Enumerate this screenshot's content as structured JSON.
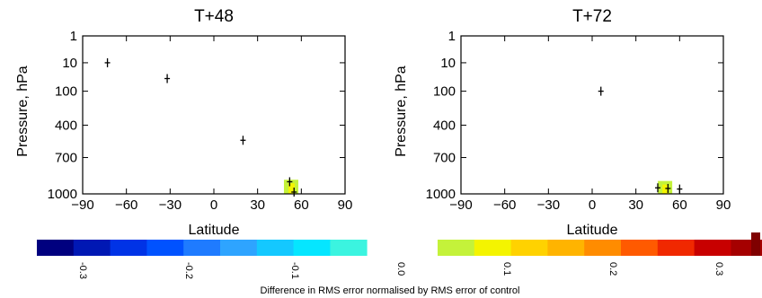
{
  "colors": {
    "negative": [
      "#00007f",
      "#0018b4",
      "#0033e6",
      "#0052ff",
      "#1f7bff",
      "#2ea4ff",
      "#14c8ff",
      "#05e6ff",
      "#3bf4e0"
    ],
    "positive": [
      "#c4f23a",
      "#f4f400",
      "#ffd200",
      "#ffb400",
      "#ff8c00",
      "#ff5a00",
      "#f02800",
      "#c80000",
      "#a50000",
      "#7f0000"
    ],
    "text": "#000000"
  },
  "chart_data": [
    {
      "type": "heatmap",
      "title": "T+48",
      "xlabel": "Latitude",
      "ylabel": "Pressure, hPa",
      "xlim": [
        -90,
        90
      ],
      "xticks": [
        -90,
        -60,
        -30,
        0,
        30,
        60,
        90
      ],
      "ylim": [
        1,
        1000
      ],
      "yscale": "nonlinear",
      "yticks": [
        1,
        10,
        100,
        400,
        700,
        1000
      ],
      "filled_regions": [
        {
          "lat": 53,
          "pressure": 950,
          "value": 0.05
        }
      ],
      "cross_marks": [
        {
          "lat": -73,
          "pressure": 10
        },
        {
          "lat": -32,
          "pressure": 60
        },
        {
          "lat": 20,
          "pressure": 540
        },
        {
          "lat": 52,
          "pressure": 900
        },
        {
          "lat": 55,
          "pressure": 985
        }
      ]
    },
    {
      "type": "heatmap",
      "title": "T+72",
      "xlabel": "Latitude",
      "ylabel": "Pressure, hPa",
      "xlim": [
        -90,
        90
      ],
      "xticks": [
        -90,
        -60,
        -30,
        0,
        30,
        60,
        90
      ],
      "ylim": [
        1,
        1000
      ],
      "yscale": "nonlinear",
      "yticks": [
        1,
        10,
        100,
        400,
        700,
        1000
      ],
      "filled_regions": [
        {
          "lat": 50,
          "pressure": 960,
          "value": 0.05
        }
      ],
      "cross_marks": [
        {
          "lat": 6,
          "pressure": 100
        },
        {
          "lat": 45,
          "pressure": 950
        },
        {
          "lat": 52,
          "pressure": 955
        },
        {
          "lat": 60,
          "pressure": 960
        }
      ]
    }
  ],
  "colorbar": {
    "tick_values": [
      -0.3,
      -0.2,
      -0.1,
      0.0,
      0.1,
      0.2,
      0.3
    ],
    "tick_labels": [
      "-0.3",
      "-0.2",
      "-0.1",
      "0.0",
      "0.1",
      "0.2",
      "0.3"
    ],
    "label": "Difference in RMS error normalised by RMS error of control"
  }
}
